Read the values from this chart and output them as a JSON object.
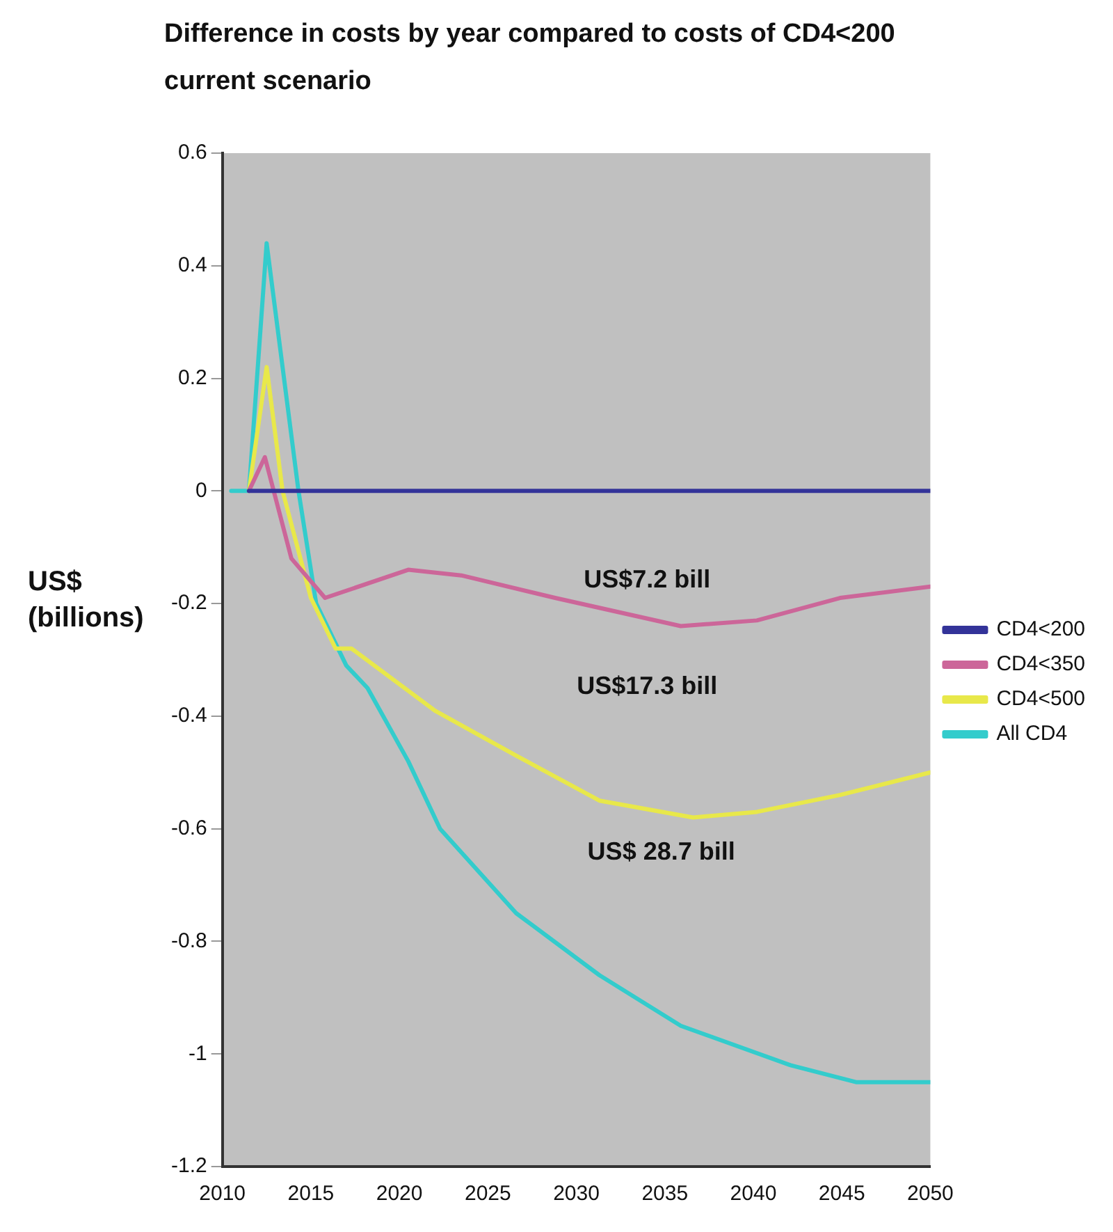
{
  "chart_data": {
    "type": "line",
    "title": "Difference in costs by year compared to costs of CD4<200 current scenario",
    "ylabel": "US$ (billions)",
    "xlim": [
      2010,
      2050
    ],
    "xticks": [
      2010,
      2015,
      2020,
      2025,
      2030,
      2035,
      2040,
      2045,
      2050
    ],
    "ylim": [
      -1.2,
      0.6
    ],
    "yticks": [
      -1.2,
      -1,
      -0.8,
      -0.6,
      -0.4,
      -0.2,
      0,
      0.2,
      0.4,
      0.6
    ],
    "grid": false,
    "legend": "right",
    "marker": "none",
    "line_style": "solid",
    "series": [
      {
        "name": "CD4<200",
        "color": "#333399",
        "x": [
          2011.5,
          2050
        ],
        "values": [
          0,
          0
        ]
      },
      {
        "name": "CD4<350",
        "color": "#cc6699",
        "x": [
          2011.5,
          2012.4,
          2013.9,
          2015.8,
          2020.5,
          2023.5,
          2028.8,
          2035.9,
          2040.2,
          2044.9,
          2050
        ],
        "values": [
          0,
          0.06,
          -0.12,
          -0.19,
          -0.14,
          -0.15,
          -0.19,
          -0.24,
          -0.23,
          -0.19,
          -0.17
        ]
      },
      {
        "name": "CD4<500",
        "color": "#e8e84a",
        "x": [
          2011.5,
          2012.5,
          2013.4,
          2015,
          2016.4,
          2017.3,
          2022,
          2026.6,
          2031.3,
          2036.6,
          2040.2,
          2044.9,
          2050
        ],
        "values": [
          0,
          0.22,
          0,
          -0.19,
          -0.28,
          -0.28,
          -0.39,
          -0.47,
          -0.55,
          -0.58,
          -0.57,
          -0.54,
          -0.5
        ]
      },
      {
        "name": "All CD4",
        "color": "#33cccc",
        "x": [
          2010.5,
          2011.5,
          2012.5,
          2014.3,
          2015.3,
          2017,
          2018.2,
          2020.5,
          2022.3,
          2026.6,
          2031.3,
          2035.9,
          2042.1,
          2045.8,
          2050
        ],
        "values": [
          0,
          0,
          0.44,
          0,
          -0.2,
          -0.31,
          -0.35,
          -0.48,
          -0.6,
          -0.75,
          -0.86,
          -0.95,
          -1.02,
          -1.05,
          -1.05
        ]
      }
    ],
    "annotations": [
      "US$7.2 bill",
      "US$17.3 bill",
      "US$ 28.7 bill"
    ]
  }
}
